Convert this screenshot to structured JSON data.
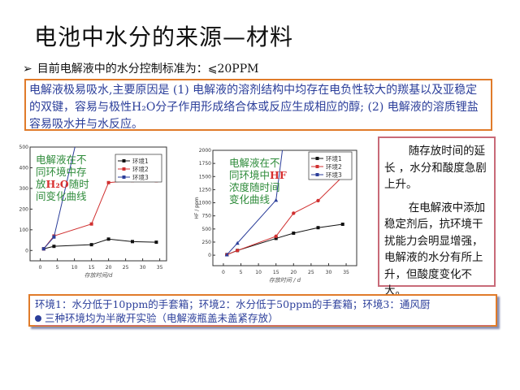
{
  "title": "电池中水分的来源—材料",
  "bullet": {
    "icon": "arrow-bullet-icon",
    "text": "目前电解液中的水分控制标准为：⩽20PPM"
  },
  "explanation": "电解液极易吸水,主要原因是 (1) 电解液的溶剂结构中均存在电负性较大的羰基以及亚稳定的双键，容易与极性H₂O分子作用形成络合体或反应生成相应的醇; (2) 电解液的溶质锂盐容易吸水并与水反应。",
  "conclusion": {
    "p1": "随存放时间的延长 ，水分和酸度急剧上升。",
    "p2": "在电解液中添加稳定剂后，抗环境干扰能力会明显增强，电解液的水分有所上升，但酸度变化不大。"
  },
  "environments": {
    "line1": "环境1：水分低于10ppm的手套箱；环境2：水分低于50ppm的手套箱；环境3：通风厨",
    "line2": "三种环境均为半敞开实验（电解液瓶盖未盖紧存放）"
  },
  "chart_data": [
    {
      "type": "line",
      "annotation": {
        "a": "电解液在不",
        "b": "同环境中存",
        "c": "放",
        "d": "H₂O",
        "e": "随时",
        "f": "间变化曲线"
      },
      "xlabel": "存放时间/d",
      "ylabel": "",
      "xlim": [
        -3,
        37
      ],
      "ylim": [
        -50,
        500
      ],
      "xticks": [
        0,
        5,
        10,
        15,
        20,
        25,
        30,
        35
      ],
      "yticks": [
        0,
        100,
        200,
        300,
        400,
        500
      ],
      "series": [
        {
          "name": "环境1",
          "color": "#111111",
          "marker": "square",
          "x": [
            1,
            4,
            15,
            20,
            27,
            34
          ],
          "y": [
            8,
            20,
            28,
            55,
            43,
            40
          ]
        },
        {
          "name": "环境2",
          "color": "#d03030",
          "marker": "square",
          "x": [
            1,
            4,
            15,
            20,
            27,
            34
          ],
          "y": [
            8,
            70,
            128,
            328,
            338,
            337
          ]
        },
        {
          "name": "环境3",
          "color": "#2b3e9a",
          "marker": "square",
          "x": [
            1,
            4,
            11
          ],
          "y": [
            8,
            65,
            560
          ]
        }
      ]
    },
    {
      "type": "line",
      "annotation": {
        "a": "电解液在不",
        "b": "同环境中",
        "c": "HF",
        "d": "浓度随时间",
        "e": "变化曲线"
      },
      "xlabel": "存放时间 / d",
      "ylabel": "HF / ppm",
      "xlim": [
        -3,
        38
      ],
      "ylim": [
        -200,
        2000
      ],
      "xticks": [
        0,
        5,
        10,
        15,
        20,
        25,
        30,
        35
      ],
      "yticks": [
        0,
        250,
        500,
        750,
        1000,
        1250,
        1500,
        1750,
        2000
      ],
      "series": [
        {
          "name": "环境1",
          "color": "#111111",
          "marker": "square",
          "x": [
            1,
            4,
            15,
            20,
            27,
            34
          ],
          "y": [
            10,
            90,
            320,
            420,
            525,
            590
          ]
        },
        {
          "name": "环境2",
          "color": "#d03030",
          "marker": "circle",
          "x": [
            1,
            4,
            15,
            20,
            27,
            34
          ],
          "y": [
            10,
            90,
            360,
            800,
            1040,
            1500
          ]
        },
        {
          "name": "环境3",
          "color": "#2b3e9a",
          "marker": "triangle",
          "x": [
            1,
            4,
            15,
            17
          ],
          "y": [
            10,
            230,
            1050,
            2100
          ]
        }
      ]
    }
  ]
}
